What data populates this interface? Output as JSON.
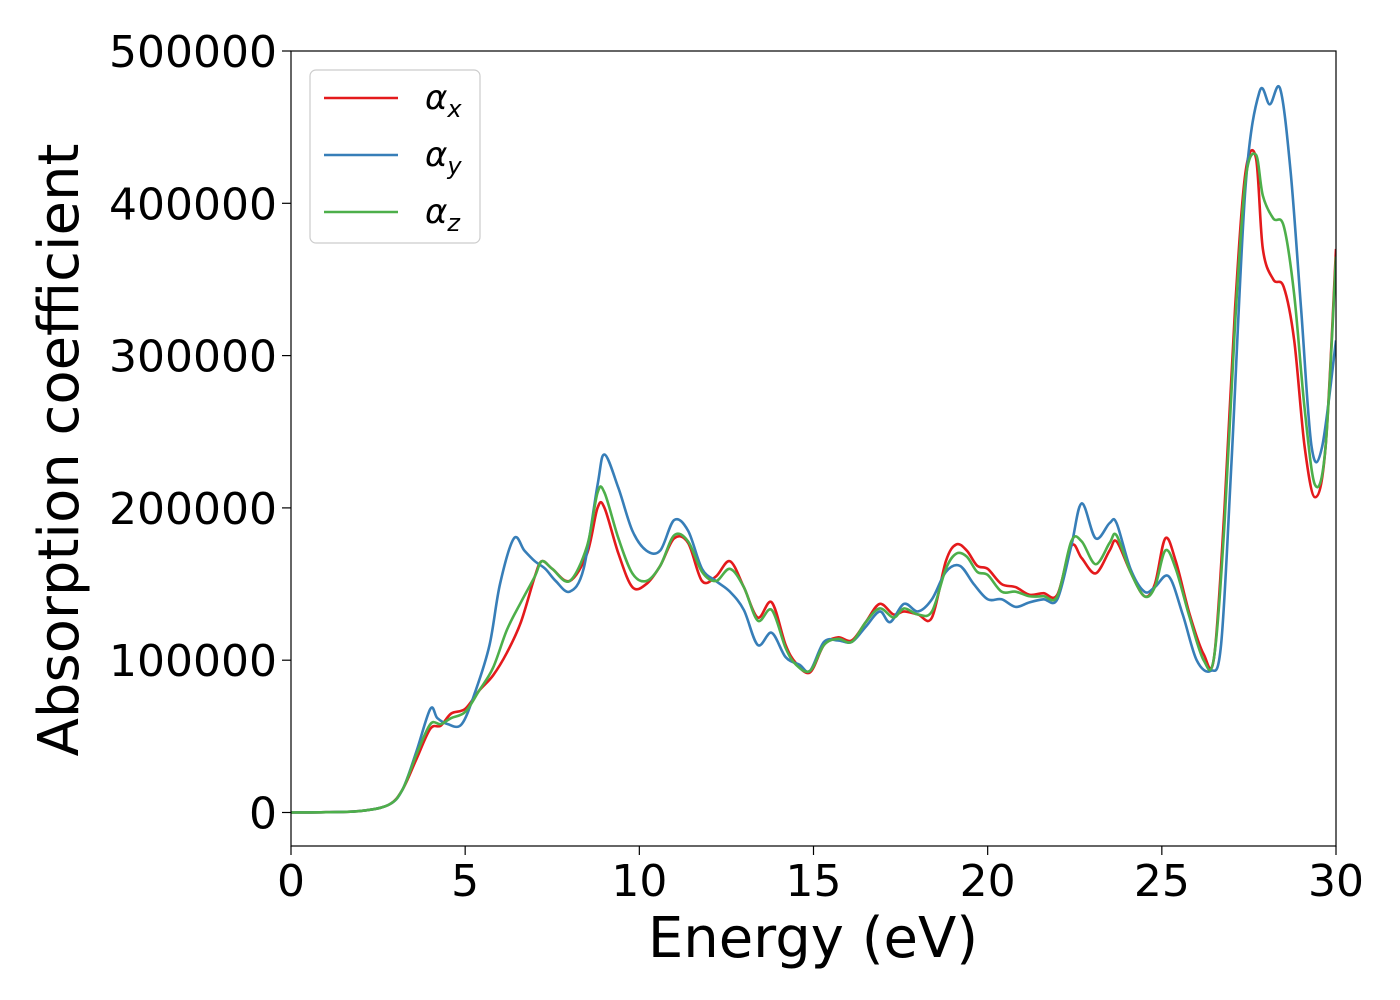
{
  "chart_data": {
    "type": "line",
    "xlabel": "Energy (eV)",
    "ylabel": "Absorption coefficient",
    "xlim": [
      0,
      30
    ],
    "ylim": [
      -22000,
      500000
    ],
    "xticks": [
      0,
      5,
      10,
      15,
      20,
      25,
      30
    ],
    "xtick_labels": [
      "0",
      "5",
      "10",
      "15",
      "20",
      "25",
      "30"
    ],
    "yticks": [
      0,
      100000,
      200000,
      300000,
      400000,
      500000
    ],
    "ytick_labels": [
      "0",
      "100000",
      "200000",
      "300000",
      "400000",
      "500000"
    ],
    "grid": false,
    "legend_position": "top-left",
    "series": [
      {
        "name": "αx",
        "legend_base": "α",
        "legend_sub": "x",
        "color": "#e41a1c",
        "x": [
          0,
          1,
          2,
          2.8,
          3.2,
          3.6,
          4.0,
          4.3,
          4.6,
          5.0,
          5.4,
          5.8,
          6.2,
          6.6,
          7.0,
          7.2,
          7.5,
          8.0,
          8.5,
          8.8,
          9.0,
          9.4,
          9.8,
          10.2,
          10.6,
          11.0,
          11.4,
          11.8,
          12.2,
          12.6,
          13.0,
          13.4,
          13.8,
          14.2,
          14.5,
          14.9,
          15.3,
          15.7,
          16.1,
          16.5,
          16.9,
          17.3,
          17.6,
          18.0,
          18.4,
          18.8,
          19.1,
          19.4,
          19.7,
          20.0,
          20.4,
          20.8,
          21.2,
          21.6,
          22.0,
          22.4,
          22.7,
          23.1,
          23.5,
          23.7,
          24.1,
          24.5,
          24.8,
          25.1,
          25.4,
          25.8,
          26.2,
          26.5,
          26.8,
          27.1,
          27.4,
          27.7,
          27.9,
          28.2,
          28.5,
          28.8,
          29.1,
          29.4,
          29.7,
          30.0
        ],
        "y": [
          0,
          200,
          1000,
          5000,
          15000,
          35000,
          55000,
          57000,
          65000,
          68000,
          80000,
          90000,
          105000,
          125000,
          155000,
          165000,
          160000,
          152000,
          170000,
          200000,
          200000,
          170000,
          148000,
          150000,
          162000,
          180000,
          177000,
          152000,
          155000,
          165000,
          148000,
          128000,
          138000,
          110000,
          98000,
          92000,
          110000,
          115000,
          113000,
          125000,
          137000,
          130000,
          132000,
          130000,
          128000,
          165000,
          176000,
          172000,
          162000,
          160000,
          150000,
          148000,
          143000,
          144000,
          143000,
          175000,
          167000,
          157000,
          172000,
          178000,
          158000,
          142000,
          150000,
          180000,
          165000,
          130000,
          104000,
          102000,
          200000,
          330000,
          420000,
          430000,
          370000,
          350000,
          345000,
          310000,
          240000,
          207000,
          240000,
          370000
        ]
      },
      {
        "name": "αy",
        "legend_base": "α",
        "legend_sub": "y",
        "color": "#377eb8",
        "x": [
          0,
          1,
          2,
          2.8,
          3.2,
          3.6,
          4.0,
          4.2,
          4.5,
          4.9,
          5.3,
          5.7,
          6.0,
          6.4,
          6.7,
          7.0,
          7.3,
          7.6,
          8.0,
          8.4,
          8.8,
          9.0,
          9.4,
          9.8,
          10.2,
          10.6,
          11.0,
          11.4,
          11.8,
          12.2,
          12.6,
          13.0,
          13.4,
          13.8,
          14.2,
          14.6,
          14.9,
          15.3,
          15.7,
          16.1,
          16.5,
          16.9,
          17.2,
          17.6,
          18.0,
          18.4,
          18.8,
          19.2,
          19.6,
          20.0,
          20.4,
          20.8,
          21.2,
          21.6,
          22.0,
          22.4,
          22.7,
          23.1,
          23.5,
          23.7,
          24.1,
          24.5,
          24.8,
          25.2,
          25.6,
          26.0,
          26.4,
          26.7,
          27.0,
          27.4,
          27.8,
          28.1,
          28.4,
          28.7,
          29.0,
          29.3,
          29.6,
          30.0
        ],
        "y": [
          0,
          200,
          1000,
          5000,
          15000,
          40000,
          68000,
          62000,
          58000,
          58000,
          80000,
          110000,
          150000,
          180000,
          172000,
          165000,
          160000,
          152000,
          145000,
          160000,
          215000,
          235000,
          213000,
          185000,
          172000,
          172000,
          192000,
          185000,
          160000,
          152000,
          145000,
          133000,
          110000,
          118000,
          102000,
          97000,
          93000,
          112000,
          113000,
          112000,
          122000,
          132000,
          125000,
          137000,
          132000,
          140000,
          158000,
          162000,
          150000,
          140000,
          140000,
          135000,
          138000,
          140000,
          140000,
          175000,
          203000,
          180000,
          190000,
          190000,
          160000,
          145000,
          148000,
          155000,
          130000,
          100000,
          93000,
          110000,
          230000,
          410000,
          473000,
          465000,
          475000,
          420000,
          330000,
          240000,
          240000,
          310000
        ]
      },
      {
        "name": "αz",
        "legend_base": "α",
        "legend_sub": "z",
        "color": "#4daf4a",
        "x": [
          0,
          1,
          2,
          2.8,
          3.2,
          3.6,
          4.0,
          4.3,
          4.6,
          5.0,
          5.4,
          5.8,
          6.2,
          6.6,
          7.0,
          7.2,
          7.5,
          8.0,
          8.5,
          8.8,
          9.0,
          9.4,
          9.8,
          10.2,
          10.6,
          11.0,
          11.4,
          11.8,
          12.2,
          12.6,
          13.0,
          13.4,
          13.8,
          14.2,
          14.5,
          14.9,
          15.3,
          15.7,
          16.1,
          16.5,
          16.9,
          17.3,
          17.6,
          18.0,
          18.4,
          18.8,
          19.1,
          19.4,
          19.7,
          20.0,
          20.4,
          20.8,
          21.2,
          21.6,
          22.0,
          22.4,
          22.7,
          23.1,
          23.5,
          23.7,
          24.1,
          24.5,
          24.8,
          25.1,
          25.4,
          25.8,
          26.2,
          26.5,
          26.8,
          27.1,
          27.4,
          27.7,
          27.9,
          28.2,
          28.5,
          28.8,
          29.1,
          29.4,
          29.7,
          30.0
        ],
        "y": [
          0,
          200,
          1000,
          5000,
          15000,
          38000,
          58000,
          58000,
          62000,
          66000,
          80000,
          95000,
          120000,
          138000,
          155000,
          165000,
          160000,
          152000,
          175000,
          210000,
          210000,
          180000,
          157000,
          152000,
          162000,
          182000,
          178000,
          158000,
          152000,
          160000,
          148000,
          126000,
          133000,
          108000,
          97000,
          93000,
          110000,
          114000,
          112000,
          125000,
          134000,
          128000,
          134000,
          130000,
          132000,
          160000,
          170000,
          168000,
          158000,
          156000,
          145000,
          145000,
          142000,
          142000,
          142000,
          178000,
          178000,
          163000,
          177000,
          182000,
          158000,
          142000,
          148000,
          172000,
          160000,
          128000,
          100000,
          102000,
          190000,
          320000,
          415000,
          432000,
          405000,
          390000,
          385000,
          340000,
          265000,
          215000,
          240000,
          365000
        ]
      }
    ]
  }
}
